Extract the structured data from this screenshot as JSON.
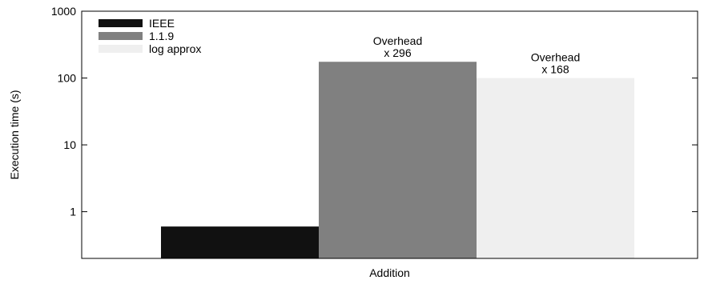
{
  "chart_data": {
    "type": "bar",
    "y_scale": "log",
    "ylim": [
      0.2,
      1000
    ],
    "yticks": [
      1,
      10,
      100,
      1000
    ],
    "ylabel": "Execution time (s)",
    "xlabel": "Addition",
    "legend_position": "top-left",
    "grid": false,
    "series": [
      {
        "name": "IEEE",
        "value": 0.6,
        "color": "#111111",
        "annotation": null
      },
      {
        "name": "1.1.9",
        "value": 175,
        "color": "#808080",
        "annotation": [
          "Overhead",
          "x 296"
        ]
      },
      {
        "name": "log approx",
        "value": 100,
        "color": "#efefef",
        "annotation": [
          "Overhead",
          "x 168"
        ]
      }
    ]
  }
}
